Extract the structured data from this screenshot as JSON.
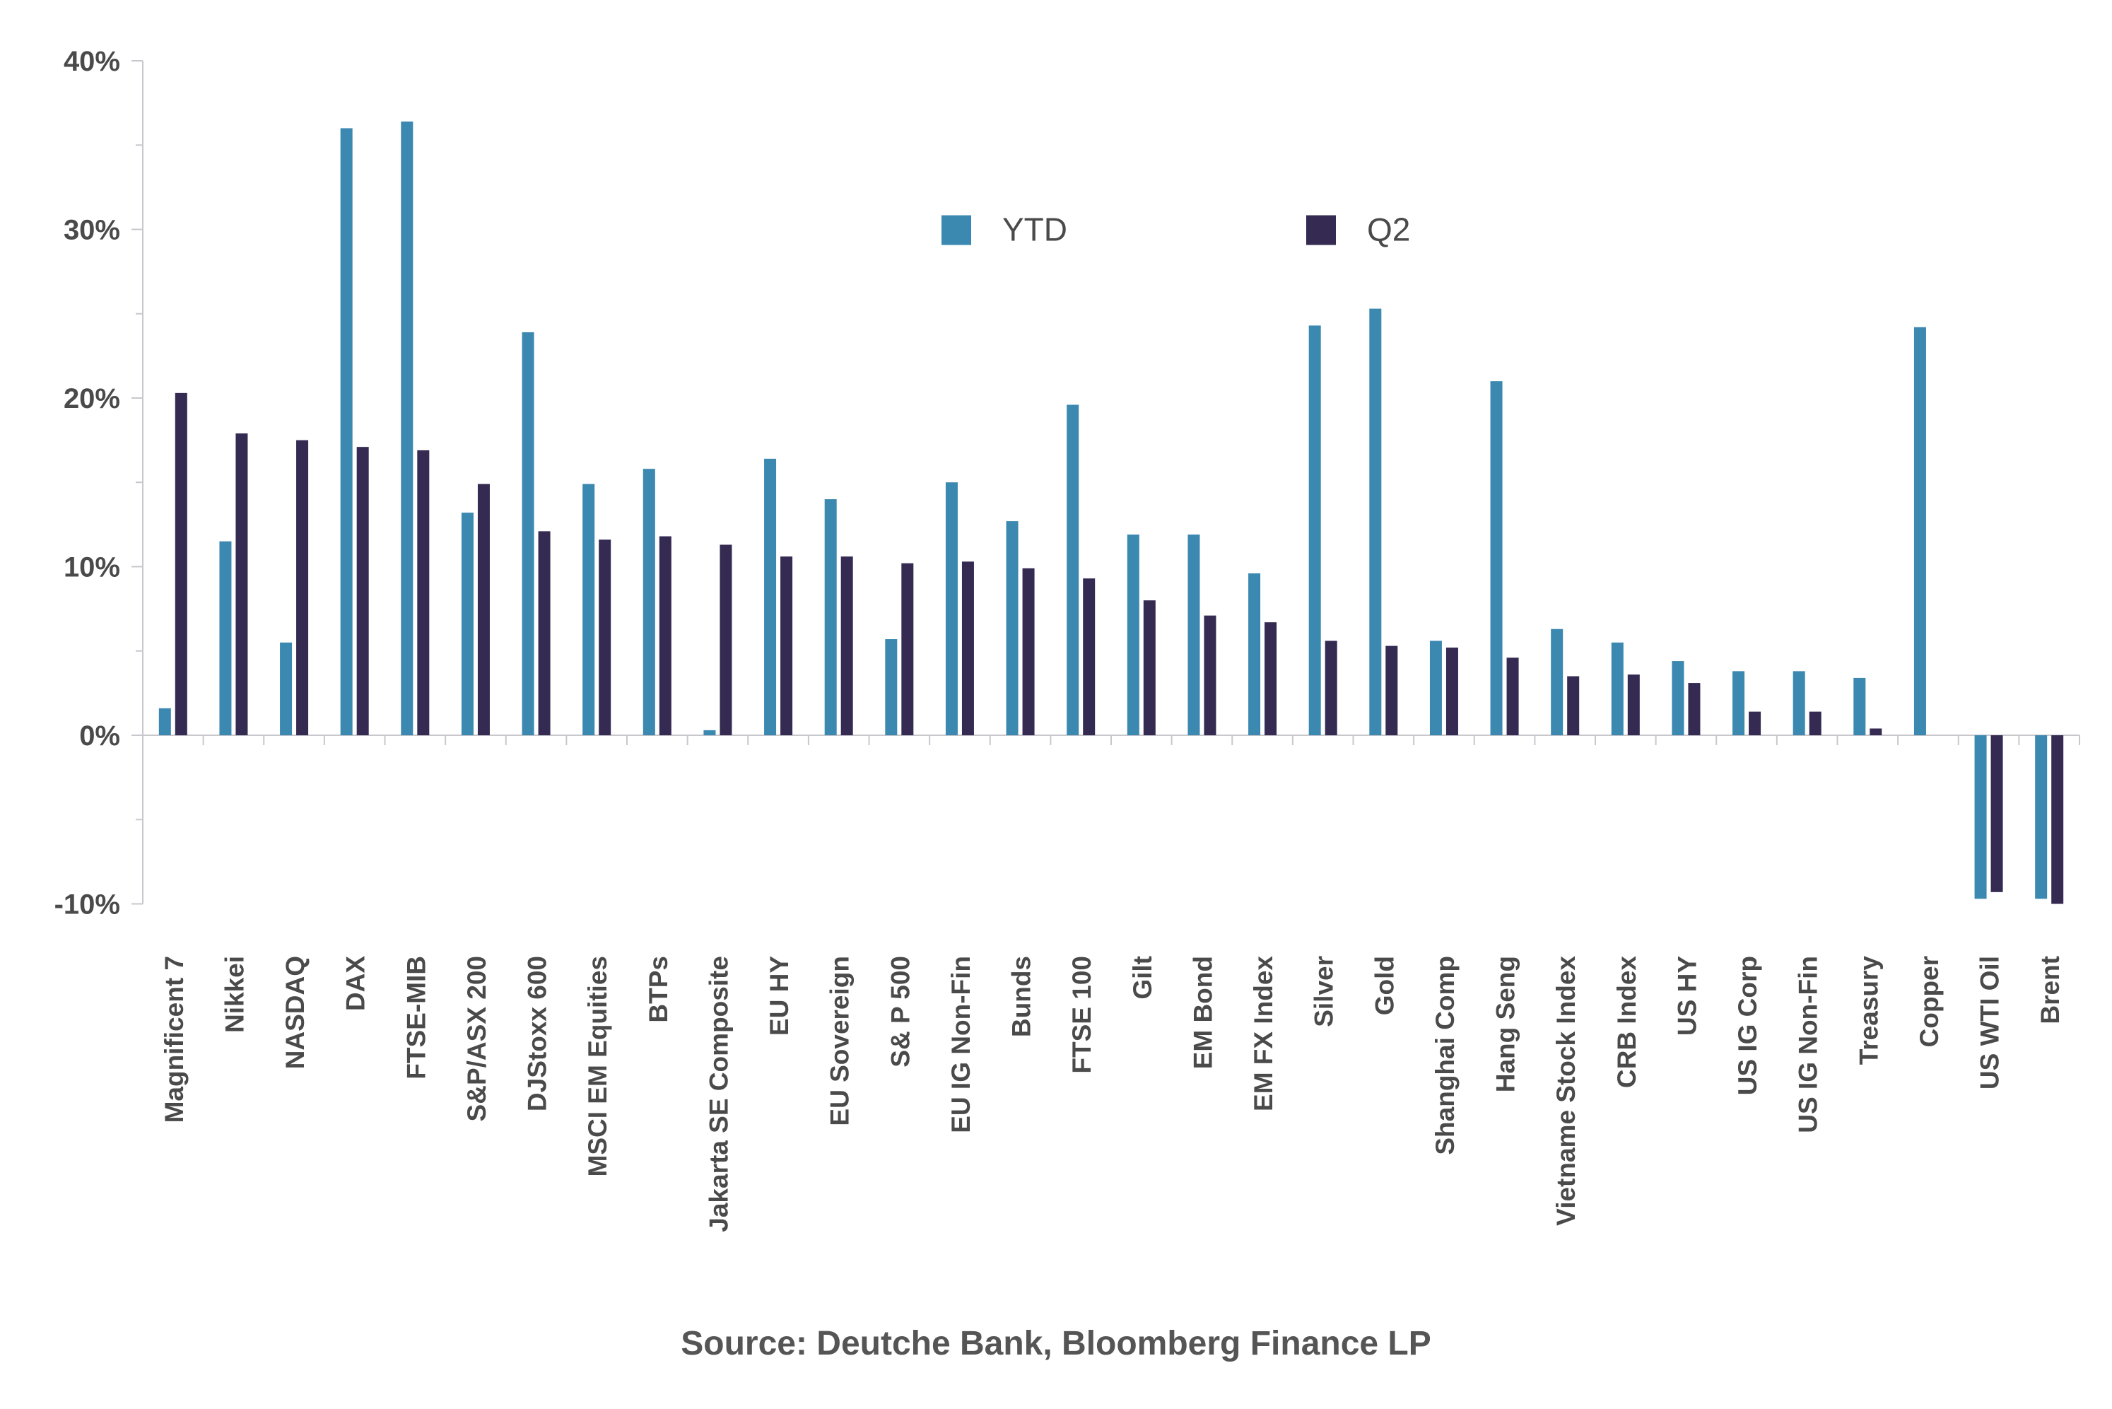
{
  "source": "Source: Deutche Bank, Bloomberg Finance LP",
  "colors": {
    "ytd": "#3b88b0",
    "q2": "#342a52",
    "axis": "#c8c8cc",
    "text": "#4a4a4a"
  },
  "chart_data": {
    "type": "bar",
    "title": "",
    "xlabel": "",
    "ylabel": "",
    "ylim": [
      -10,
      40
    ],
    "yticks": [
      -10,
      0,
      10,
      20,
      30,
      40
    ],
    "ytick_labels": [
      "-10%",
      "0%",
      "10%",
      "20%",
      "30%",
      "40%"
    ],
    "legend_position": "top-center",
    "grid": false,
    "categories": [
      "Magnificent 7",
      "Nikkei",
      "NASDAQ",
      "DAX",
      "FTSE-MIB",
      "S&P/ASX 200",
      "DJStoxx 600",
      "MSCI EM Equities",
      "BTPs",
      "Jakarta SE Composite",
      "EU HY",
      "EU Sovereign",
      "S& P 500",
      "EU IG Non-Fin",
      "Bunds",
      "FTSE 100",
      "Gilt",
      "EM Bond",
      "EM FX Index",
      "Silver",
      "Gold",
      "Shanghai Comp",
      "Hang Seng",
      "Vietname Stock Index",
      "CRB Index",
      "US HY",
      "US IG Corp",
      "US IG Non-Fin",
      "Treasury",
      "Copper",
      "US WTI Oil",
      "Brent"
    ],
    "series": [
      {
        "name": "YTD",
        "values": [
          1.6,
          11.5,
          5.5,
          36.0,
          36.4,
          13.2,
          23.9,
          14.9,
          15.8,
          0.3,
          16.4,
          14.0,
          5.7,
          15.0,
          12.7,
          19.6,
          11.9,
          11.9,
          9.6,
          24.3,
          25.3,
          5.6,
          21.0,
          6.3,
          5.5,
          4.4,
          3.8,
          3.8,
          3.4,
          24.2,
          -9.7,
          -9.7
        ]
      },
      {
        "name": "Q2",
        "values": [
          20.3,
          17.9,
          17.5,
          17.1,
          16.9,
          14.9,
          12.1,
          11.6,
          11.8,
          11.3,
          10.6,
          10.6,
          10.2,
          10.3,
          9.9,
          9.3,
          8.0,
          7.1,
          6.7,
          5.6,
          5.3,
          5.2,
          4.6,
          3.5,
          3.6,
          3.1,
          1.4,
          1.4,
          0.4,
          0.0,
          -9.3,
          -10.0
        ]
      }
    ]
  }
}
